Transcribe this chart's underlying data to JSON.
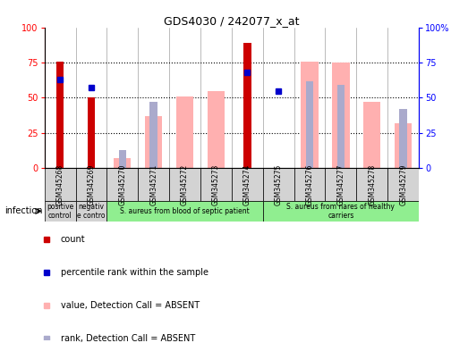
{
  "title": "GDS4030 / 242077_x_at",
  "samples": [
    "GSM345268",
    "GSM345269",
    "GSM345270",
    "GSM345271",
    "GSM345272",
    "GSM345273",
    "GSM345274",
    "GSM345275",
    "GSM345276",
    "GSM345277",
    "GSM345278",
    "GSM345279"
  ],
  "count_values": [
    76,
    50,
    0,
    0,
    0,
    0,
    89,
    0,
    0,
    0,
    0,
    0
  ],
  "percentile_values": [
    63,
    57,
    0,
    0,
    0,
    0,
    68,
    55,
    0,
    0,
    0,
    0
  ],
  "absent_value_bars": [
    0,
    0,
    7,
    37,
    51,
    55,
    0,
    0,
    76,
    75,
    47,
    32
  ],
  "absent_rank_bars": [
    0,
    0,
    13,
    47,
    0,
    0,
    0,
    0,
    62,
    59,
    0,
    42
  ],
  "groups": [
    {
      "label": "positive\ncontrol",
      "start": 0,
      "end": 1,
      "color": "#d3d3d3"
    },
    {
      "label": "negativ\ne contro",
      "start": 1,
      "end": 2,
      "color": "#d3d3d3"
    },
    {
      "label": "S. aureus from blood of septic patient",
      "start": 2,
      "end": 7,
      "color": "#90ee90"
    },
    {
      "label": "S. aureus from nares of healthy\ncarriers",
      "start": 7,
      "end": 12,
      "color": "#90ee90"
    }
  ],
  "ylim": [
    0,
    100
  ],
  "grid_lines": [
    25,
    50,
    75
  ],
  "count_color": "#cc0000",
  "percentile_color": "#0000cc",
  "absent_value_color": "#ffb0b0",
  "absent_rank_color": "#aaaacc",
  "bar_width": 0.55,
  "count_bar_width": 0.25,
  "legend_items": [
    {
      "color": "#cc0000",
      "label": "count"
    },
    {
      "color": "#0000cc",
      "label": "percentile rank within the sample"
    },
    {
      "color": "#ffb0b0",
      "label": "value, Detection Call = ABSENT"
    },
    {
      "color": "#aaaacc",
      "label": "rank, Detection Call = ABSENT"
    }
  ]
}
